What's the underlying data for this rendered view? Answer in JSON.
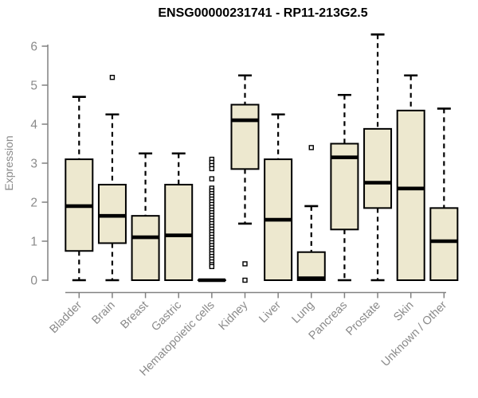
{
  "chart_data": {
    "type": "box",
    "title": "ENSG00000231741 - RP11-213G2.5",
    "xlabel": "",
    "ylabel": "Expression",
    "ylim": [
      0,
      6
    ],
    "yticks": [
      0,
      1,
      2,
      3,
      4,
      5,
      6
    ],
    "grid": false,
    "legend": "none",
    "categories": [
      "Bladder",
      "Brain",
      "Breast",
      "Gastric",
      "Hematopoietic cells",
      "Kidney",
      "Liver",
      "Lung",
      "Pancreas",
      "Prostate",
      "Skin",
      "Unknown / Other"
    ],
    "boxes": [
      {
        "label": "Bladder",
        "min": 0,
        "q1": 0.75,
        "median": 1.9,
        "q3": 3.1,
        "max": 4.7,
        "outliers": []
      },
      {
        "label": "Brain",
        "min": 0,
        "q1": 0.95,
        "median": 1.65,
        "q3": 2.45,
        "max": 4.25,
        "outliers": [
          5.2
        ]
      },
      {
        "label": "Breast",
        "min": 0,
        "q1": 0,
        "median": 1.1,
        "q3": 1.65,
        "max": 3.25,
        "outliers": []
      },
      {
        "label": "Gastric",
        "min": 0,
        "q1": 0,
        "median": 1.15,
        "q3": 2.45,
        "max": 3.25,
        "outliers": []
      },
      {
        "label": "Hematopoietic cells",
        "min": 0,
        "q1": 0,
        "median": 0,
        "q3": 0,
        "max": 0,
        "outliers": [
          3.1,
          3.02,
          2.94,
          2.86,
          2.6,
          2.36,
          2.29,
          2.22,
          2.15,
          2.08,
          2.01,
          1.94,
          1.87,
          1.8,
          1.73,
          1.66,
          1.59,
          1.52,
          1.45,
          1.38,
          1.31,
          1.24,
          1.17,
          1.1,
          1.03,
          0.96,
          0.89,
          0.82,
          0.75,
          0.68,
          0.61,
          0.54,
          0.47,
          0.4,
          0.35
        ]
      },
      {
        "label": "Kidney",
        "min": 1.45,
        "q1": 2.85,
        "median": 4.1,
        "q3": 4.5,
        "max": 5.25,
        "outliers": [
          0.42,
          0
        ]
      },
      {
        "label": "Liver",
        "min": 0,
        "q1": 0,
        "median": 1.55,
        "q3": 3.1,
        "max": 4.25,
        "outliers": []
      },
      {
        "label": "Lung",
        "min": 0,
        "q1": 0,
        "median": 0.05,
        "q3": 0.72,
        "max": 1.9,
        "outliers": [
          3.4
        ]
      },
      {
        "label": "Pancreas",
        "min": 0,
        "q1": 1.3,
        "median": 3.15,
        "q3": 3.5,
        "max": 4.75,
        "outliers": []
      },
      {
        "label": "Prostate",
        "min": 0,
        "q1": 1.85,
        "median": 2.5,
        "q3": 3.88,
        "max": 6.3,
        "outliers": []
      },
      {
        "label": "Skin",
        "min": 0,
        "q1": 0,
        "median": 2.35,
        "q3": 4.35,
        "max": 5.25,
        "outliers": []
      },
      {
        "label": "Unknown / Other",
        "min": 0,
        "q1": 0,
        "median": 1.0,
        "q3": 1.85,
        "max": 4.4,
        "outliers": []
      }
    ]
  },
  "colors": {
    "box_fill": "#EDE8CF",
    "box_border": "#000000",
    "median": "#000000",
    "whisker": "#000000",
    "outlier_fill": "#ffffff",
    "axis": "#818181",
    "tick_label": "#8a8a8a",
    "title": "#000000"
  }
}
